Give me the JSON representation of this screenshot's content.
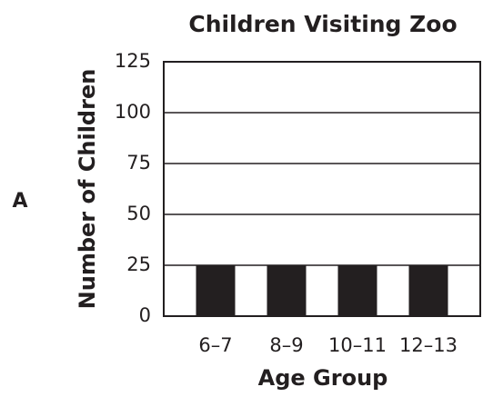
{
  "label": "A",
  "chart_data": {
    "type": "bar",
    "title": "Children Visiting Zoo",
    "x_label": "Age Group",
    "y_label": "Number of Children",
    "categories": [
      "6–7",
      "8–9",
      "10–11",
      "12–13"
    ],
    "values": [
      25,
      25,
      25,
      25
    ],
    "color": "#231f20",
    "ylim": [
      0,
      125
    ],
    "yticks": [
      0,
      25,
      50,
      75,
      100,
      125
    ],
    "grid": true
  }
}
